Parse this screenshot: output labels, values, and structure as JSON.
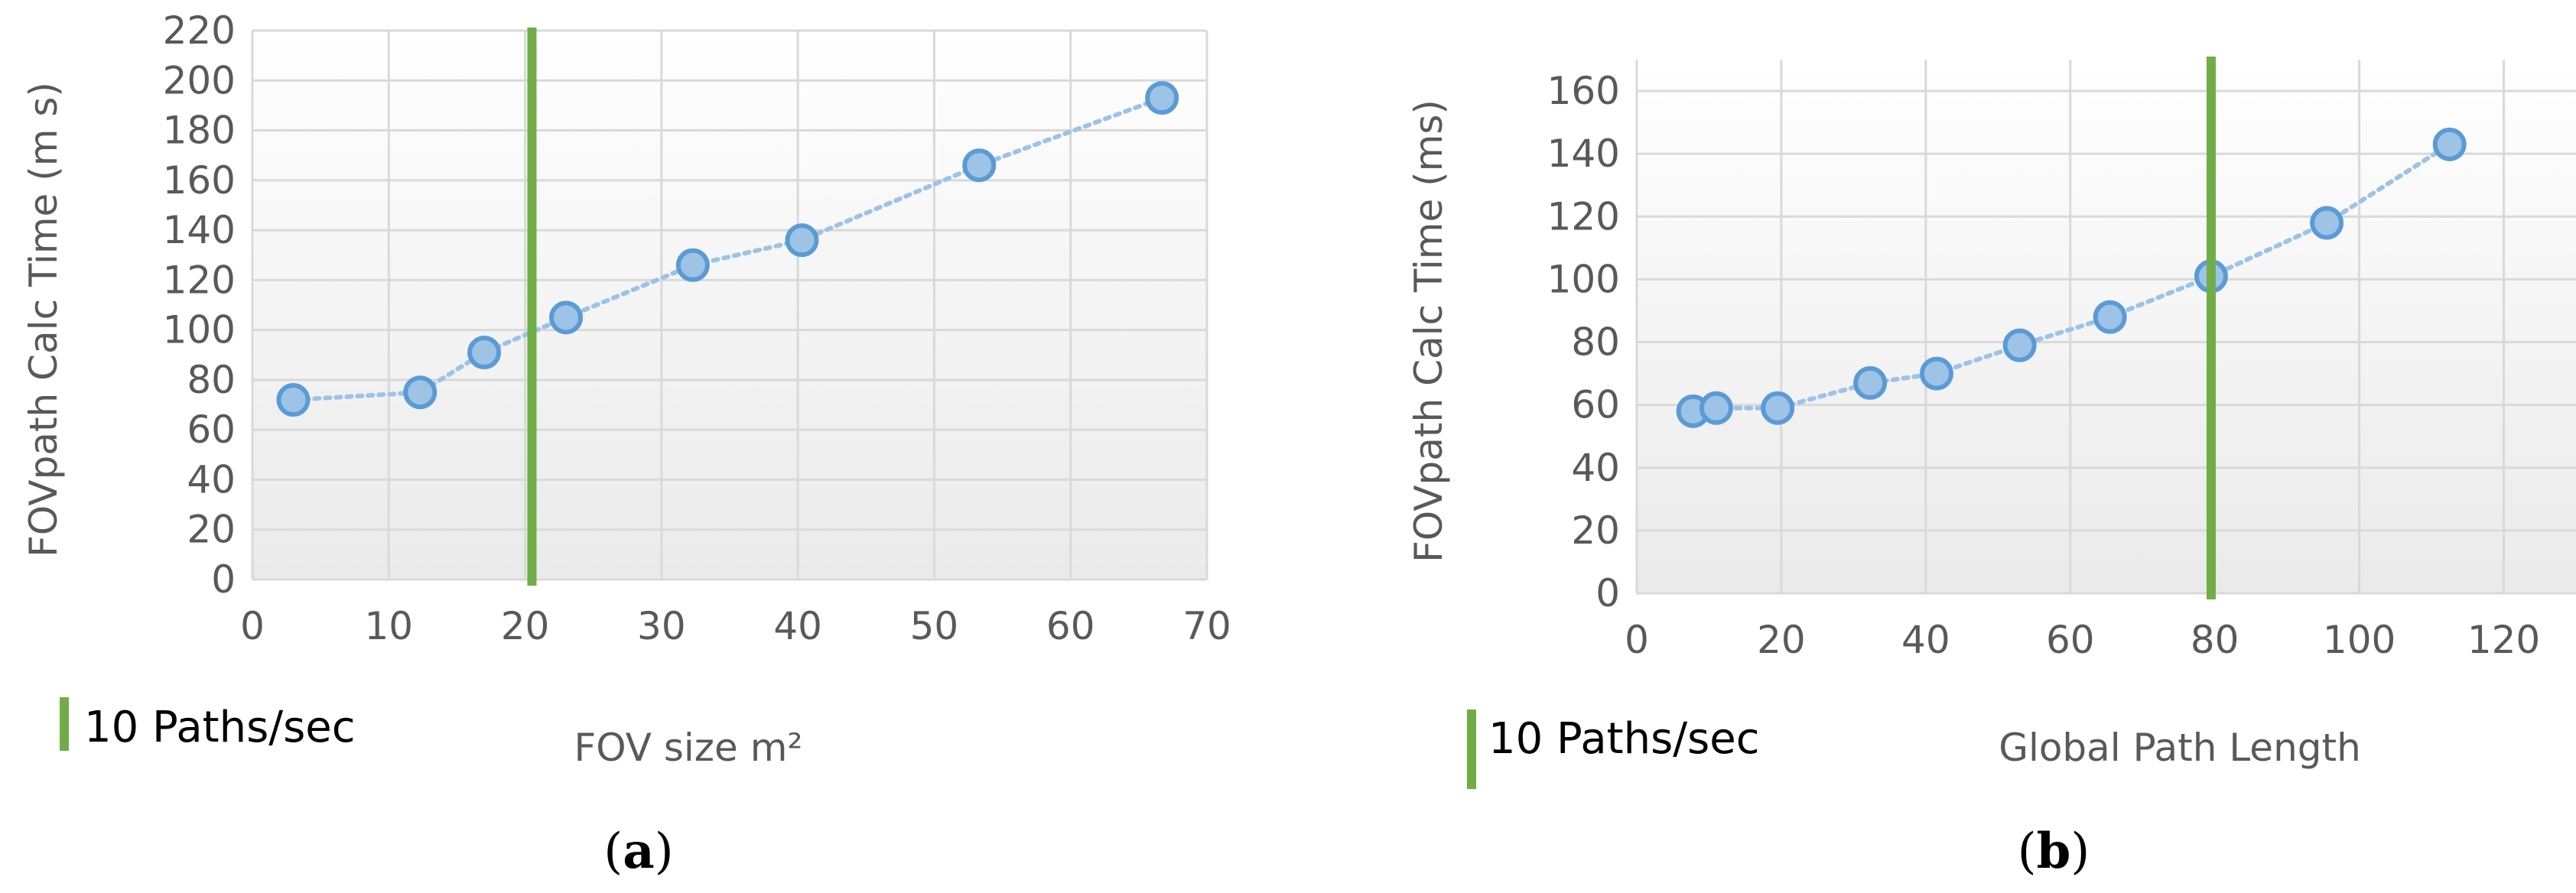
{
  "chart_data": [
    {
      "type": "scatter",
      "caption_letter": "a",
      "xlabel": "FOV size m²",
      "ylabel": "FOVpath  Calc Time  (m s)",
      "xlim": [
        0,
        70
      ],
      "ylim": [
        0,
        220
      ],
      "xticks": [
        "0",
        "10",
        "20",
        "30",
        "40",
        "50",
        "60",
        "70"
      ],
      "yticks": [
        "0",
        "20",
        "40",
        "60",
        "80",
        "100",
        "120",
        "140",
        "160",
        "180",
        "200",
        "220"
      ],
      "grid": true,
      "line_style": "dotted",
      "points": [
        {
          "x": 3,
          "y": 72
        },
        {
          "x": 12.3,
          "y": 75
        },
        {
          "x": 17,
          "y": 91
        },
        {
          "x": 23,
          "y": 105
        },
        {
          "x": 32.3,
          "y": 126
        },
        {
          "x": 40.3,
          "y": 136
        },
        {
          "x": 53.3,
          "y": 166
        },
        {
          "x": 66.7,
          "y": 193
        }
      ],
      "reference_line": {
        "x": 20.5,
        "label": "10 Paths/sec",
        "color": "#70AD47"
      },
      "marker_color": "#5B9BD5"
    },
    {
      "type": "scatter",
      "caption_letter": "b",
      "xlabel": "Global Path Length",
      "ylabel": "FOVpath  Calc Time  (ms)",
      "xlim": [
        0,
        130
      ],
      "ylim": [
        0,
        170
      ],
      "xticks": [
        "0",
        "20",
        "40",
        "60",
        "80",
        "100",
        "120"
      ],
      "yticks": [
        "0",
        "20",
        "40",
        "60",
        "80",
        "100",
        "120",
        "140",
        "160"
      ],
      "grid": true,
      "line_style": "dotted",
      "points": [
        {
          "x": 7.8,
          "y": 58
        },
        {
          "x": 11,
          "y": 59
        },
        {
          "x": 19.5,
          "y": 59
        },
        {
          "x": 32.3,
          "y": 67
        },
        {
          "x": 41.5,
          "y": 70
        },
        {
          "x": 53,
          "y": 79
        },
        {
          "x": 65.5,
          "y": 88
        },
        {
          "x": 79.5,
          "y": 101
        },
        {
          "x": 95.5,
          "y": 118
        },
        {
          "x": 112.5,
          "y": 143
        }
      ],
      "reference_line": {
        "x": 79.5,
        "label": "10 Paths/sec",
        "color": "#70AD47"
      },
      "marker_color": "#5B9BD5"
    }
  ]
}
